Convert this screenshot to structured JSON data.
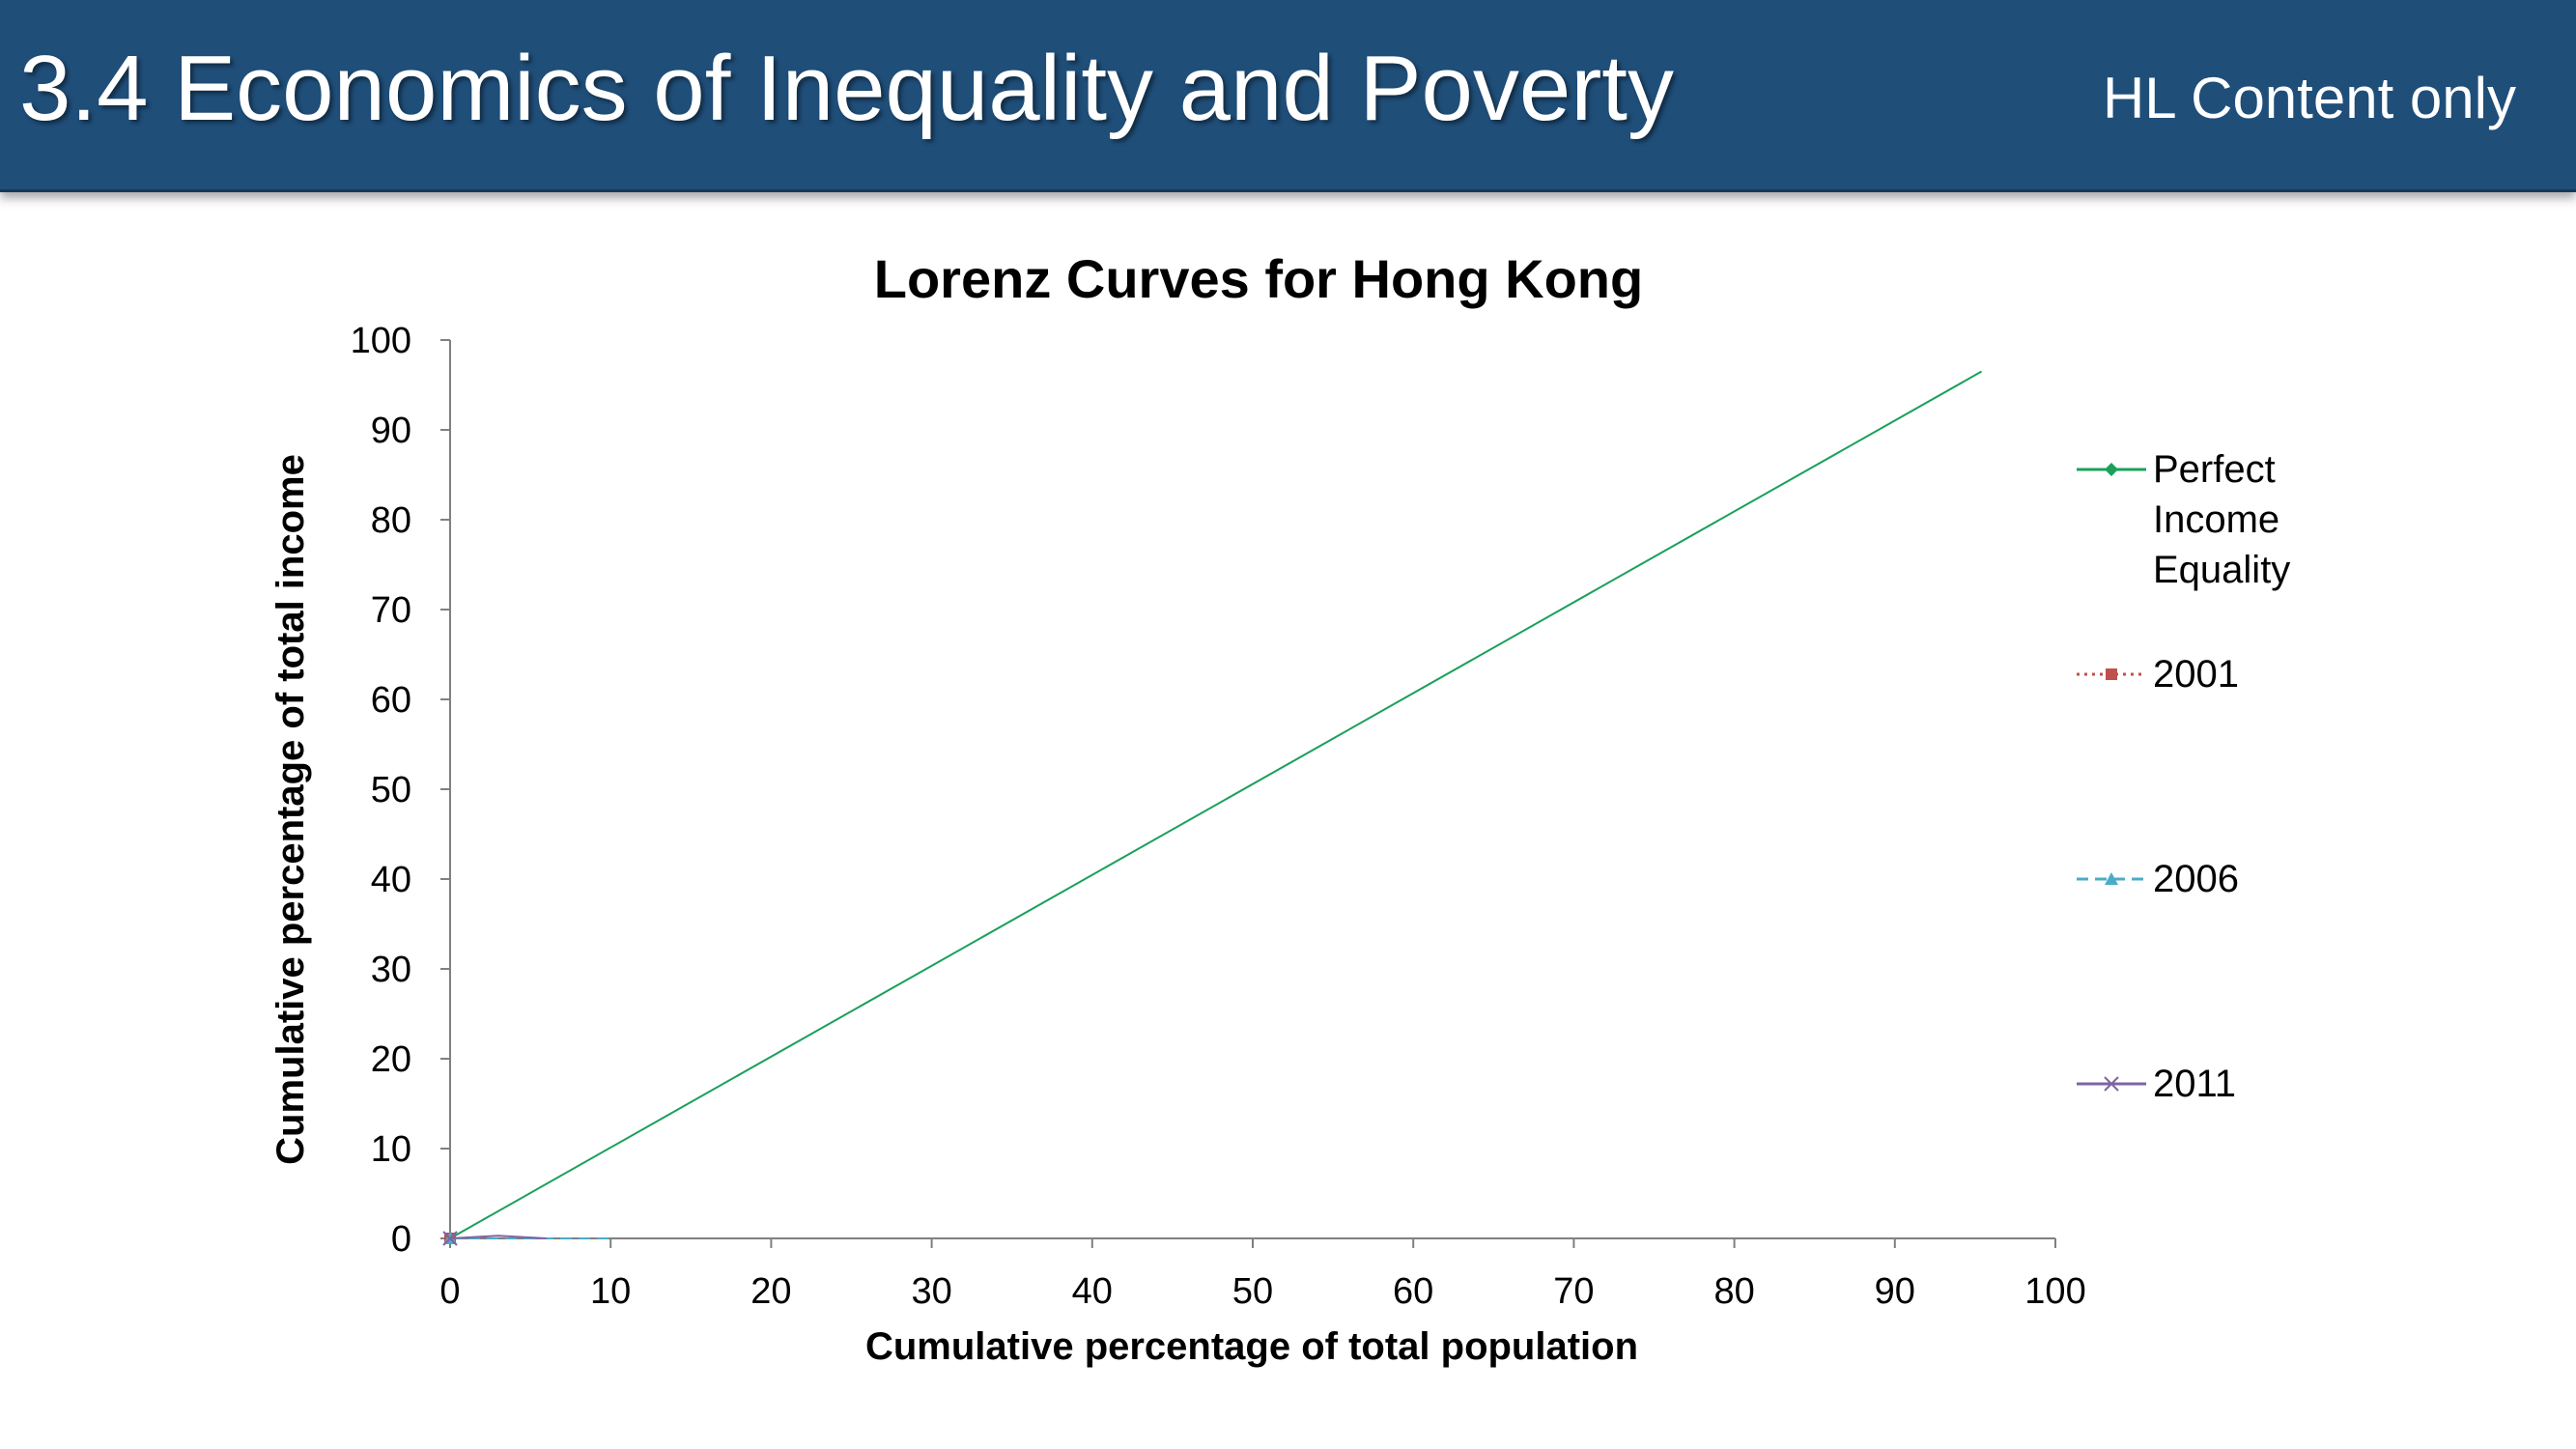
{
  "header": {
    "title": "3.4 Economics of Inequality and Poverty",
    "tag": "HL Content only"
  },
  "chart_data": {
    "type": "line",
    "title": "Lorenz Curves for Hong Kong",
    "xlabel": "Cumulative percentage of total population",
    "ylabel": "Cumulative percentage of total income",
    "xlim": [
      0,
      100
    ],
    "ylim": [
      0,
      100
    ],
    "x_ticks": [
      0,
      10,
      20,
      30,
      40,
      50,
      60,
      70,
      80,
      90,
      100
    ],
    "y_ticks": [
      0,
      10,
      20,
      30,
      40,
      50,
      60,
      70,
      80,
      90,
      100
    ],
    "grid": false,
    "legend_position": "right",
    "series": [
      {
        "name": "Perfect Income Equality",
        "name_lines": [
          "Perfect",
          "Income",
          "Equality"
        ],
        "color": "#1aa05a",
        "marker": "diamond",
        "dash": "solid",
        "points": [
          [
            0,
            0
          ],
          [
            95.4,
            96.5
          ]
        ]
      },
      {
        "name": "2001",
        "name_lines": [
          "2001"
        ],
        "color": "#c0504d",
        "marker": "square",
        "dash": "dotted",
        "points": [
          [
            0,
            0
          ],
          [
            0,
            0.3
          ]
        ]
      },
      {
        "name": "2006",
        "name_lines": [
          "2006"
        ],
        "color": "#4bacc6",
        "marker": "triangle",
        "dash": "dashed",
        "points": [
          [
            0,
            0
          ],
          [
            10,
            0
          ]
        ]
      },
      {
        "name": "2011",
        "name_lines": [
          "2011"
        ],
        "color": "#8064a2",
        "marker": "x",
        "dash": "solid",
        "points": [
          [
            0,
            0
          ],
          [
            3,
            0.3
          ],
          [
            6,
            0
          ]
        ]
      }
    ]
  }
}
